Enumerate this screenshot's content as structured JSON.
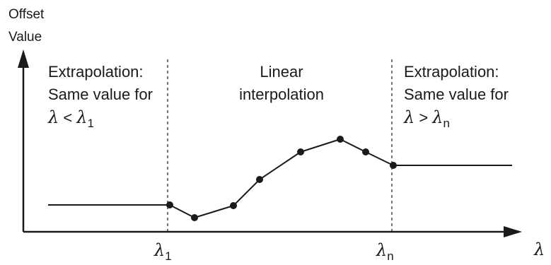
{
  "y_axis": {
    "title_line1": "Offset",
    "title_line2": "Value"
  },
  "x_axis": {
    "symbol": "λ",
    "tick_first_symbol": "λ",
    "tick_first_subscript": "1",
    "tick_last_symbol": "λ",
    "tick_last_subscript": "n"
  },
  "regions": {
    "left": {
      "line1": "Extrapolation:",
      "line2": "Same value for",
      "cond_symbol": "λ",
      "cond_op": " < ",
      "cond_ref_symbol": "λ",
      "cond_ref_subscript": "1"
    },
    "middle": {
      "line1": "Linear",
      "line2": "interpolation"
    },
    "right": {
      "line1": "Extrapolation:",
      "line2": "Same value for",
      "cond_symbol": "λ",
      "cond_op": " > ",
      "cond_ref_symbol": "λ",
      "cond_ref_subscript": "n"
    }
  },
  "colors": {
    "ink": "#1a1a1a",
    "background": "#ffffff"
  }
}
